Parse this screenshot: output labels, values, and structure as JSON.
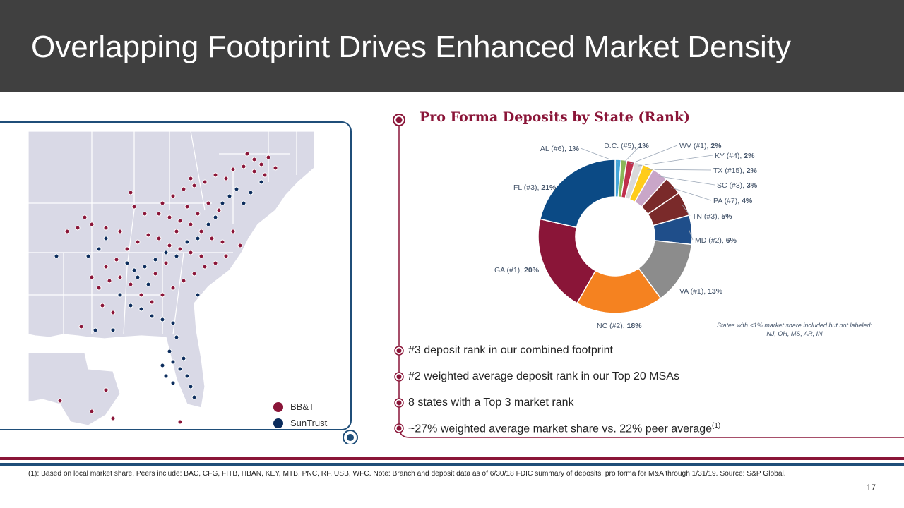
{
  "title": "Overlapping Footprint Drives Enhanced Market Density",
  "chart_title": "Pro Forma Deposits by State (Rank)",
  "legend": {
    "bbt": {
      "label": "BB&T",
      "color": "#8a1538"
    },
    "suntrust": {
      "label": "SunTrust",
      "color": "#0b2c5c"
    }
  },
  "chart_data": {
    "type": "pie",
    "slices": [
      {
        "label": "AL (#6),",
        "pct": "1%",
        "value": 1.2,
        "color": "#44a5d9"
      },
      {
        "label": "D.C. (#5),",
        "pct": "1%",
        "value": 1.2,
        "color": "#8bb658"
      },
      {
        "label": "WV (#1),",
        "pct": "2%",
        "value": 1.6,
        "color": "#c0304d"
      },
      {
        "label": "KY (#4),",
        "pct": "2%",
        "value": 1.8,
        "color": "#d9d9d9"
      },
      {
        "label": "TX (#15),",
        "pct": "2%",
        "value": 2.3,
        "color": "#ffcc1a"
      },
      {
        "label": "SC (#3),",
        "pct": "3%",
        "value": 3.3,
        "color": "#c9a6c8"
      },
      {
        "label": "PA (#7),",
        "pct": "4%",
        "value": 3.8,
        "color": "#7a2a2a"
      },
      {
        "label": "TN (#3),",
        "pct": "5%",
        "value": 5.0,
        "color": "#1f4e8a"
      },
      {
        "label": "MD (#2),",
        "pct": "6%",
        "value": 6.0,
        "color": "#8c8c8c"
      },
      {
        "label": "VA (#1),",
        "pct": "13%",
        "value": 13.0,
        "color": "#f58220"
      },
      {
        "label": "NC (#2),",
        "pct": "18%",
        "value": 18.0,
        "color": "#8a1538"
      },
      {
        "label": "GA (#1),",
        "pct": "20%",
        "value": 20.0,
        "color": "#0b4a85"
      },
      {
        "label": "FL (#3),",
        "pct": "21%",
        "value": 21.0,
        "color": "#ffffff"
      }
    ],
    "note": "States with <1% market share included but not labeled: NJ, OH, MS, AR, IN"
  },
  "stats": [
    {
      "text": "#3 deposit rank in our combined footprint"
    },
    {
      "text": "#2 weighted average deposit rank in our Top 20 MSAs"
    },
    {
      "text": "8 states with a Top 3 market rank"
    },
    {
      "text": "~27% weighted average market share vs. 22% peer average",
      "sup": "(1)"
    }
  ],
  "footnote": "(1): Based on local market share. Peers include: BAC, CFG, FITB, HBAN, KEY, MTB, PNC, RF, USB, WFC. Note: Branch and deposit data as of 6/30/18 FDIC summary of deposits, pro forma for M&A through 1/31/19.  Source: S&P Global.",
  "page_number": "17",
  "accent": "#8a1538"
}
